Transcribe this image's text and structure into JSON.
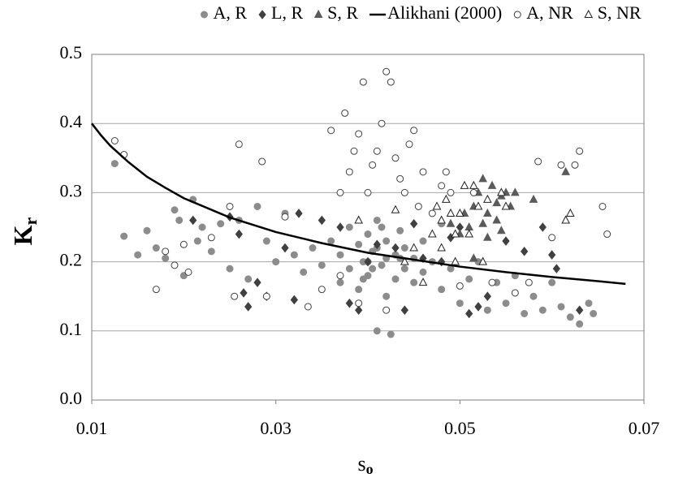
{
  "chart_data": {
    "type": "scatter",
    "x_label": "s",
    "x_label_sub": "o",
    "y_label": "K",
    "y_label_sub": "r",
    "xlim": [
      0.01,
      0.07
    ],
    "xticks": [
      0.01,
      0.03,
      0.05,
      0.07
    ],
    "ylim": [
      0,
      0.5
    ],
    "yticks": [
      {
        "value": 0,
        "label": "0.0"
      },
      0.1,
      0.2,
      0.3,
      0.4,
      0.5
    ],
    "grid": true,
    "legend": "top",
    "series": [
      {
        "name": "A, R",
        "color": "#8c8c8c",
        "marker": "circle",
        "filled": true,
        "x": [
          0.0125,
          0.0135,
          0.015,
          0.016,
          0.017,
          0.018,
          0.019,
          0.0195,
          0.02,
          0.021,
          0.0215,
          0.022,
          0.023,
          0.024,
          0.025,
          0.026,
          0.027,
          0.028,
          0.029,
          0.03,
          0.031,
          0.032,
          0.033,
          0.034,
          0.035,
          0.036,
          0.037,
          0.037,
          0.038,
          0.038,
          0.039,
          0.039,
          0.0395,
          0.04,
          0.04,
          0.0405,
          0.041,
          0.041,
          0.0415,
          0.042,
          0.042,
          0.0425,
          0.043,
          0.043,
          0.0435,
          0.044,
          0.044,
          0.045,
          0.045,
          0.046,
          0.046,
          0.047,
          0.048,
          0.048,
          0.049,
          0.05,
          0.051,
          0.052,
          0.053,
          0.054,
          0.055,
          0.056,
          0.057,
          0.058,
          0.059,
          0.06,
          0.061,
          0.062,
          0.063,
          0.064,
          0.0645,
          0.042,
          0.041,
          0.04,
          0.0405,
          0.0435,
          0.0415,
          0.0395
        ],
        "values": [
          0.342,
          0.237,
          0.21,
          0.245,
          0.22,
          0.205,
          0.275,
          0.26,
          0.18,
          0.29,
          0.23,
          0.25,
          0.215,
          0.255,
          0.19,
          0.26,
          0.175,
          0.28,
          0.23,
          0.2,
          0.27,
          0.21,
          0.185,
          0.22,
          0.195,
          0.23,
          0.17,
          0.21,
          0.25,
          0.19,
          0.225,
          0.16,
          0.2,
          0.24,
          0.18,
          0.215,
          0.1,
          0.26,
          0.195,
          0.23,
          0.15,
          0.095,
          0.21,
          0.175,
          0.245,
          0.19,
          0.22,
          0.17,
          0.205,
          0.23,
          0.185,
          0.2,
          0.255,
          0.16,
          0.19,
          0.14,
          0.175,
          0.2,
          0.13,
          0.17,
          0.14,
          0.18,
          0.125,
          0.15,
          0.13,
          0.17,
          0.135,
          0.12,
          0.11,
          0.14,
          0.125,
          0.205,
          0.22,
          0.2,
          0.19,
          0.205,
          0.25,
          0.175
        ]
      },
      {
        "name": "L, R",
        "color": "#404040",
        "marker": "diamond",
        "filled": true,
        "x": [
          0.021,
          0.025,
          0.026,
          0.0265,
          0.027,
          0.028,
          0.029,
          0.031,
          0.032,
          0.0325,
          0.035,
          0.037,
          0.038,
          0.039,
          0.04,
          0.041,
          0.043,
          0.044,
          0.045,
          0.046,
          0.048,
          0.049,
          0.05,
          0.051,
          0.052,
          0.053,
          0.055,
          0.057,
          0.059,
          0.06,
          0.0605,
          0.063
        ],
        "values": [
          0.26,
          0.265,
          0.24,
          0.155,
          0.135,
          0.17,
          0.15,
          0.22,
          0.145,
          0.27,
          0.26,
          0.25,
          0.14,
          0.13,
          0.2,
          0.225,
          0.22,
          0.13,
          0.255,
          0.205,
          0.2,
          0.235,
          0.25,
          0.125,
          0.135,
          0.15,
          0.23,
          0.215,
          0.25,
          0.21,
          0.19,
          0.13
        ]
      },
      {
        "name": "S, R",
        "color": "#5a5a5a",
        "marker": "triangle",
        "filled": true,
        "x": [
          0.05,
          0.051,
          0.0515,
          0.052,
          0.0525,
          0.053,
          0.0535,
          0.054,
          0.0545,
          0.055,
          0.0555,
          0.056,
          0.058,
          0.0615,
          0.049,
          0.0505,
          0.0515,
          0.053,
          0.054,
          0.0525,
          0.0545
        ],
        "values": [
          0.24,
          0.25,
          0.28,
          0.3,
          0.32,
          0.27,
          0.31,
          0.26,
          0.295,
          0.3,
          0.28,
          0.3,
          0.29,
          0.33,
          0.255,
          0.27,
          0.205,
          0.235,
          0.285,
          0.255,
          0.245
        ]
      },
      {
        "name": "Alikhani (2000)",
        "color": "#000000",
        "marker": "line",
        "filled": false,
        "x": [
          0.01,
          0.011,
          0.012,
          0.014,
          0.016,
          0.018,
          0.02,
          0.025,
          0.03,
          0.035,
          0.04,
          0.045,
          0.05,
          0.055,
          0.06,
          0.065,
          0.068
        ],
        "values": [
          0.4,
          0.383,
          0.368,
          0.344,
          0.323,
          0.307,
          0.292,
          0.264,
          0.243,
          0.227,
          0.213,
          0.203,
          0.193,
          0.185,
          0.178,
          0.172,
          0.168
        ]
      },
      {
        "name": "A, NR",
        "color": "#404040",
        "marker": "circle",
        "filled": false,
        "x": [
          0.0125,
          0.0135,
          0.017,
          0.018,
          0.019,
          0.02,
          0.0205,
          0.023,
          0.025,
          0.0255,
          0.026,
          0.0285,
          0.029,
          0.031,
          0.0335,
          0.035,
          0.036,
          0.037,
          0.0375,
          0.038,
          0.0385,
          0.039,
          0.0395,
          0.04,
          0.0405,
          0.041,
          0.0415,
          0.042,
          0.0425,
          0.043,
          0.0435,
          0.044,
          0.0445,
          0.045,
          0.0455,
          0.046,
          0.047,
          0.048,
          0.0485,
          0.049,
          0.05,
          0.0515,
          0.0535,
          0.056,
          0.0575,
          0.0585,
          0.06,
          0.061,
          0.0625,
          0.063,
          0.0655,
          0.066,
          0.037,
          0.039,
          0.042
        ],
        "values": [
          0.375,
          0.355,
          0.16,
          0.215,
          0.195,
          0.225,
          0.185,
          0.235,
          0.28,
          0.15,
          0.37,
          0.345,
          0.15,
          0.265,
          0.135,
          0.16,
          0.39,
          0.3,
          0.415,
          0.33,
          0.36,
          0.385,
          0.46,
          0.3,
          0.34,
          0.36,
          0.4,
          0.475,
          0.46,
          0.35,
          0.32,
          0.3,
          0.37,
          0.39,
          0.28,
          0.33,
          0.27,
          0.31,
          0.33,
          0.3,
          0.165,
          0.3,
          0.17,
          0.155,
          0.17,
          0.345,
          0.235,
          0.34,
          0.34,
          0.36,
          0.28,
          0.24,
          0.18,
          0.14,
          0.13
        ]
      },
      {
        "name": "S, NR",
        "color": "#202020",
        "marker": "triangle",
        "filled": false,
        "x": [
          0.039,
          0.043,
          0.045,
          0.046,
          0.047,
          0.0475,
          0.048,
          0.0485,
          0.049,
          0.0495,
          0.05,
          0.0505,
          0.051,
          0.0515,
          0.052,
          0.0525,
          0.053,
          0.0545,
          0.055,
          0.0615,
          0.062,
          0.048,
          0.0495,
          0.044
        ],
        "values": [
          0.26,
          0.275,
          0.22,
          0.17,
          0.24,
          0.28,
          0.26,
          0.29,
          0.27,
          0.2,
          0.27,
          0.31,
          0.24,
          0.31,
          0.28,
          0.2,
          0.29,
          0.3,
          0.28,
          0.26,
          0.27,
          0.22,
          0.24,
          0.2
        ]
      }
    ]
  }
}
